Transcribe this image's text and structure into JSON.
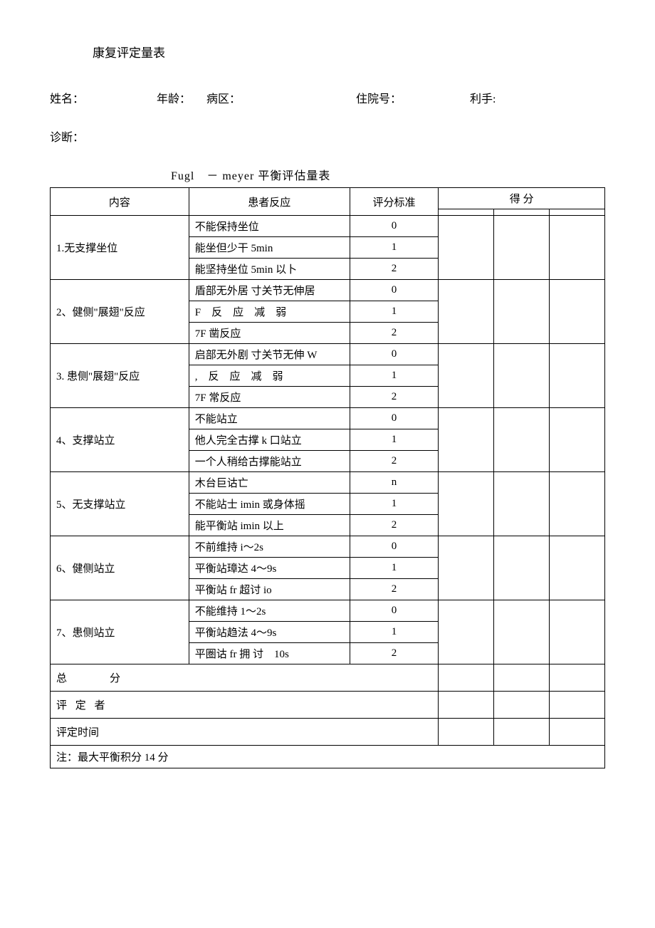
{
  "doc_title": "康复评定量表",
  "info": {
    "name_label": "姓名：",
    "age_label": "年龄：",
    "ward_label": "病区：",
    "admission_label": "住院号：",
    "hand_label": "利手:",
    "diagnosis_label": "诊断："
  },
  "table_title": "Fugl　－ meyer 平衡评估量表",
  "headers": {
    "content": "内容",
    "reaction": "患者反应",
    "std": "评分标准",
    "score": "得 分"
  },
  "rows": [
    {
      "label": "1.无支撑坐位",
      "sub": [
        {
          "reaction": "不能保持坐位",
          "std": "0"
        },
        {
          "reaction": "能坐但少干 5min",
          "std": "1"
        },
        {
          "reaction": "能坚持坐位 5min 以卜",
          "std": "2"
        }
      ]
    },
    {
      "label": "2、健侧\"展翅\"反应",
      "sub": [
        {
          "reaction": "盾部无外居 寸关节无伸居",
          "std": "0"
        },
        {
          "reaction": "F　反　应　减　弱",
          "std": "1"
        },
        {
          "reaction": "7F 凿反应",
          "std": "2"
        }
      ]
    },
    {
      "label": "3. 患侧\"展翅\"反应",
      "sub": [
        {
          "reaction": "启部无外剧 寸关节无伸 W",
          "std": "0"
        },
        {
          "reaction": ",　反　应　减　弱",
          "std": "1"
        },
        {
          "reaction": "7F 常反应",
          "std": "2"
        }
      ]
    },
    {
      "label": "4、支撑站立",
      "sub": [
        {
          "reaction": "不能站立",
          "std": "0"
        },
        {
          "reaction": "他人完全古撑 k 口站立",
          "std": "1"
        },
        {
          "reaction": "一个人稍给古撑能站立",
          "std": "2"
        }
      ]
    },
    {
      "label": "5、无支撑站立",
      "sub": [
        {
          "reaction": "木台巨诂亡",
          "std": "n"
        },
        {
          "reaction": "不能站士 imin 或身体摇",
          "std": "1"
        },
        {
          "reaction": "能平衡站 imin 以上",
          "std": "2"
        }
      ]
    },
    {
      "label": "6、健侧站立",
      "sub": [
        {
          "reaction": "不前维持 i〜2s",
          "std": "0"
        },
        {
          "reaction": "平衡站璋达 4〜9s",
          "std": "1"
        },
        {
          "reaction": "平衡站 fr 超讨 io",
          "std": "2"
        }
      ]
    },
    {
      "label": "7、患侧站立",
      "sub": [
        {
          "reaction": "不能维持 1〜2s",
          "std": "0"
        },
        {
          "reaction": "平衡站趋法 4〜9s",
          "std": "1"
        },
        {
          "reaction": "平圏诂 fr 拥 讨　10s",
          "std": "2"
        }
      ]
    }
  ],
  "footer": {
    "total": "总　　　　分",
    "assessor": "评 定 者",
    "time": "评定时间",
    "note": "注：最大平衡积分 14 分"
  }
}
